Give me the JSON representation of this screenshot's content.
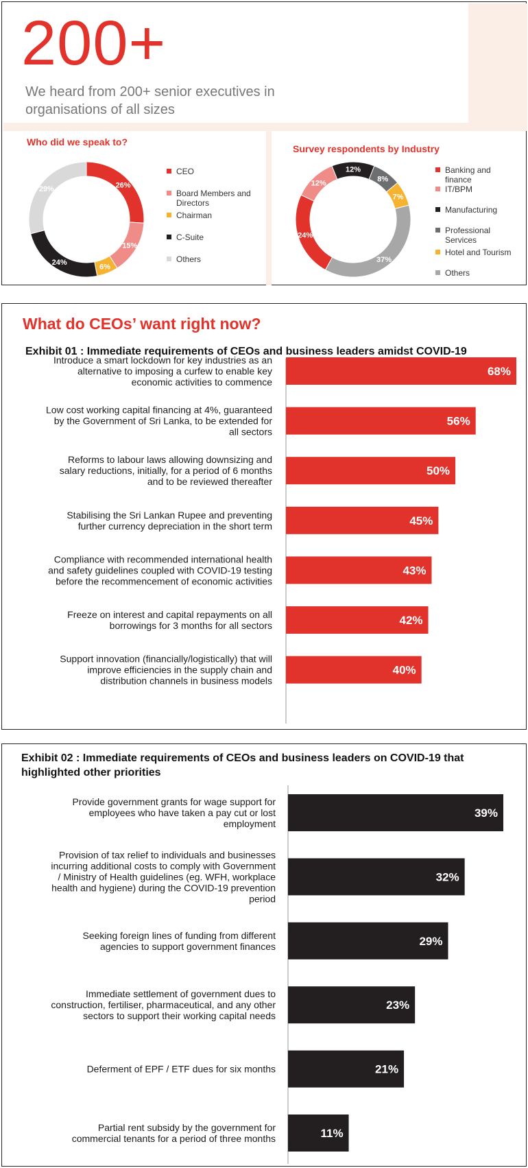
{
  "header": {
    "big_number": "200+",
    "intro": "We heard from 200+ senior executives in organisations of all sizes"
  },
  "colors": {
    "red": "#e1332b",
    "pink": "#f08c87",
    "yellow": "#f6b330",
    "black": "#231f20",
    "grey": "#d9d9d9",
    "midgrey": "#a8a7a7",
    "darkgrey": "#6d6e70"
  },
  "chart_data": [
    {
      "type": "pie",
      "title": "Who did we speak to?",
      "donut": true,
      "slices": [
        {
          "label": "CEO",
          "value": 26,
          "text": "26%",
          "color": "#e1332b"
        },
        {
          "label": "Board Members and Directors",
          "value": 15,
          "text": "15%",
          "color": "#f08c87"
        },
        {
          "label": "Chairman",
          "value": 6,
          "text": "6%",
          "color": "#f6b330"
        },
        {
          "label": "C-Suite",
          "value": 24,
          "text": "24%",
          "color": "#231f20"
        },
        {
          "label": "Others",
          "value": 29,
          "text": "29%",
          "color": "#d9d9d9"
        }
      ]
    },
    {
      "type": "pie",
      "title": "Survey respondents by Industry",
      "donut": true,
      "slices": [
        {
          "label": "Banking and finance",
          "value": 24,
          "text": "24%",
          "color": "#e1332b"
        },
        {
          "label": "IT/BPM",
          "value": 12,
          "text": "12%",
          "color": "#f08c87"
        },
        {
          "label": "Manufacturing",
          "value": 12,
          "text": "12%",
          "color": "#231f20"
        },
        {
          "label": "Professional Services",
          "value": 8,
          "text": "8%",
          "color": "#6d6e70"
        },
        {
          "label": "Hotel and Tourism",
          "value": 7,
          "text": "7%",
          "color": "#f6b330"
        },
        {
          "label": "Others",
          "value": 37,
          "text": "37%",
          "color": "#a8a7a7"
        }
      ]
    },
    {
      "type": "bar",
      "orientation": "horizontal",
      "title": "Exhibit 01 : Immediate requirements of CEOs and business leaders amidst COVID-19",
      "color": "#e1332b",
      "xlim": [
        0,
        68
      ],
      "categories": [
        "Introduce a smart lockdown for key industries as an alternative to imposing a curfew to enable key economic activities to commence",
        "Low cost working capital financing at 4%, guaranteed by the Government of Sri Lanka, to be extended for all sectors",
        "Reforms to labour laws allowing downsizing and salary reductions, initially, for a period of 6 months and to be reviewed thereafter",
        "Stabilising the Sri Lankan Rupee and preventing further currency depreciation in the short term",
        "Compliance with recommended international health and safety guidelines coupled with COVID-19 testing before the recommencement of economic activities",
        "Freeze on interest and capital repayments on all borrowings for 3 months for all sectors",
        "Support innovation (financially/logistically) that will improve efficiencies in the supply chain and distribution channels in business models"
      ],
      "values": [
        68,
        56,
        50,
        45,
        43,
        42,
        40
      ],
      "labels": [
        "68%",
        "56%",
        "50%",
        "45%",
        "43%",
        "42%",
        "40%"
      ]
    },
    {
      "type": "bar",
      "orientation": "horizontal",
      "title": "Exhibit 02 : Immediate requirements of CEOs and business leaders on COVID-19 that highlighted other priorities",
      "color": "#231f20",
      "xlim": [
        0,
        39
      ],
      "categories": [
        "Provide government grants for wage support for employees who have taken a pay cut or lost employment",
        "Provision of tax relief to individuals and businesses incurring additional costs to comply with Government / Ministry of Health guidelines (eg. WFH, workplace health and hygiene) during the COVID-19 prevention period",
        "Seeking foreign lines of funding from different agencies to support government finances",
        "Immediate settlement of government dues to construction, fertiliser, pharmaceutical, and any other sectors to support their working capital needs",
        "Deferment of EPF / ETF dues for six months",
        "Partial rent subsidy by the government for commercial tenants for a period of three months"
      ],
      "values": [
        39,
        32,
        29,
        23,
        21,
        11
      ],
      "labels": [
        "39%",
        "32%",
        "29%",
        "23%",
        "21%",
        "11%"
      ]
    }
  ],
  "exhibit1_section_title": "What do CEOs’ want right now?",
  "legend_lines": {
    "d1": [
      [
        "CEO"
      ],
      [
        "Board Members and",
        "Directors"
      ],
      [
        "Chairman"
      ],
      [
        "C-Suite"
      ],
      [
        "Others"
      ]
    ],
    "d2": [
      [
        "Banking and",
        "finance"
      ],
      [
        "IT/BPM"
      ],
      [
        "Manufacturing"
      ],
      [
        "Professional",
        "Services"
      ],
      [
        "Hotel and Tourism"
      ],
      [
        "Others"
      ]
    ]
  },
  "label_lines": {
    "ex1": [
      [
        "Introduce a smart lockdown for key industries as an",
        "alternative to imposing a curfew to enable key",
        "economic activities to commence"
      ],
      [
        "Low cost working capital financing at 4%, guaranteed",
        "by the Government of Sri Lanka, to be extended for",
        "all sectors"
      ],
      [
        "Reforms to labour laws allowing downsizing and",
        "salary reductions, initially, for a period of 6 months",
        "and to be reviewed thereafter"
      ],
      [
        "Stabilising the Sri Lankan Rupee and preventing",
        "further currency depreciation in the short term"
      ],
      [
        "Compliance with recommended international health",
        "and safety guidelines coupled with COVID-19 testing",
        "before the recommencement of economic activities"
      ],
      [
        "Freeze on interest and capital repayments on all",
        "borrowings for 3 months for all sectors"
      ],
      [
        "Support innovation (financially/logistically) that will",
        "improve efficiencies in the supply chain and",
        "distribution channels in business models"
      ]
    ],
    "ex2": [
      [
        "Provide government grants for wage support for",
        "employees who have taken a pay cut or lost",
        "employment"
      ],
      [
        "Provision of tax relief to individuals and businesses",
        "incurring additional costs to comply with Government",
        "/ Ministry of Health guidelines (eg. WFH, workplace",
        "health and hygiene) during the COVID-19 prevention",
        "period"
      ],
      [
        "Seeking foreign lines of funding from different",
        "agencies to support government finances"
      ],
      [
        "Immediate settlement of government dues to",
        "construction, fertiliser, pharmaceutical, and any other",
        "sectors to support their working capital needs"
      ],
      [
        "Deferment of EPF / ETF dues for six months"
      ],
      [
        "Partial rent subsidy by the government for",
        "commercial tenants for a period of three months"
      ]
    ]
  }
}
